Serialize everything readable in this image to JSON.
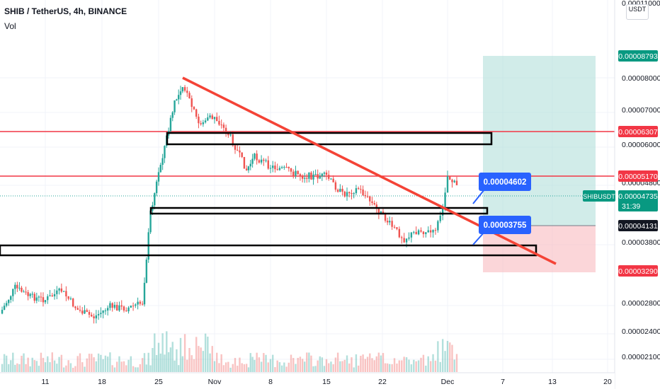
{
  "header": {
    "title": "SHIB / TetherUS, 4h, BINANCE",
    "volume_label": "Vol"
  },
  "currency_button": {
    "line1": "",
    "line2": "USDT"
  },
  "price_axis": {
    "ticks": [
      "0.00008000",
      "0.00007000",
      "0.00006000",
      "0.00004800",
      "0.00003800",
      "0.00002800",
      "0.00002400",
      "0.00002100"
    ],
    "top_partial": "0.00011000"
  },
  "time_axis": {
    "ticks": [
      "11",
      "18",
      "25",
      "Nov",
      "8",
      "15",
      "22",
      "Dec",
      "7",
      "13",
      "20"
    ]
  },
  "price_tags": {
    "target": "0.00008793",
    "resistance_upper": "0.00006307",
    "resistance_lower": "0.00005170",
    "symbol": "SHIBUSDT",
    "current_price": "0.00004735",
    "countdown": "31:39",
    "entry": "0.00004131",
    "stop": "0.00003290"
  },
  "callouts": {
    "upper": "0.00004602",
    "lower": "0.00003755"
  },
  "chart_data": {
    "type": "candlestick",
    "symbol": "SHIB / TetherUS",
    "interval": "4h",
    "exchange": "BINANCE",
    "date_ticks": [
      "11",
      "18",
      "25",
      "Nov",
      "8",
      "15",
      "22",
      "Dec",
      "7",
      "13",
      "20"
    ],
    "y_ticks": [
      2.1e-05,
      2.4e-05,
      2.8e-05,
      3.8e-05,
      4.8e-05,
      6e-05,
      7e-05,
      8e-05
    ],
    "horizontal_levels": [
      6.307e-05,
      5.17e-05
    ],
    "trendline": {
      "start": 8e-05,
      "end": 3.3e-05
    },
    "price_path": [
      {
        "x": "Oct 5",
        "close": 2.65e-05
      },
      {
        "x": "Oct 7",
        "close": 3.05e-05
      },
      {
        "x": "Oct 9",
        "close": 2.9e-05
      },
      {
        "x": "Oct 11",
        "close": 2.85e-05
      },
      {
        "x": "Oct 13",
        "close": 3e-05
      },
      {
        "x": "Oct 15",
        "close": 2.7e-05
      },
      {
        "x": "Oct 17",
        "close": 2.6e-05
      },
      {
        "x": "Oct 19",
        "close": 2.75e-05
      },
      {
        "x": "Oct 21",
        "close": 2.72e-05
      },
      {
        "x": "Oct 23",
        "close": 2.8e-05
      },
      {
        "x": "Oct 24",
        "close": 4.3e-05
      },
      {
        "x": "Oct 25",
        "close": 5.1e-05
      },
      {
        "x": "Oct 26",
        "close": 6.2e-05
      },
      {
        "x": "Oct 27",
        "close": 7.2e-05
      },
      {
        "x": "Oct 28",
        "close": 7.8e-05
      },
      {
        "x": "Oct 30",
        "close": 6.6e-05
      },
      {
        "x": "Nov 1",
        "close": 6.8e-05
      },
      {
        "x": "Nov 3",
        "close": 6.2e-05
      },
      {
        "x": "Nov 5",
        "close": 5.2e-05
      },
      {
        "x": "Nov 6",
        "close": 5.6e-05
      },
      {
        "x": "Nov 8",
        "close": 5.3e-05
      },
      {
        "x": "Nov 10",
        "close": 5.2e-05
      },
      {
        "x": "Nov 12",
        "close": 5e-05
      },
      {
        "x": "Nov 15",
        "close": 5e-05
      },
      {
        "x": "Nov 17",
        "close": 4.6e-05
      },
      {
        "x": "Nov 19",
        "close": 4.7e-05
      },
      {
        "x": "Nov 21",
        "close": 4.4e-05
      },
      {
        "x": "Nov 23",
        "close": 4.1e-05
      },
      {
        "x": "Nov 25",
        "close": 3.85e-05
      },
      {
        "x": "Nov 27",
        "close": 4e-05
      },
      {
        "x": "Nov 29",
        "close": 3.95e-05
      },
      {
        "x": "Nov 30",
        "close": 4.2e-05
      },
      {
        "x": "Dec 1",
        "close": 5e-05
      },
      {
        "x": "Dec 2",
        "close": 4.735e-05
      }
    ],
    "long_position": {
      "entry": 4.131e-05,
      "target": 8.793e-05,
      "stop": 3.29e-05
    },
    "annotations": [
      4.602e-05,
      3.755e-05
    ]
  }
}
